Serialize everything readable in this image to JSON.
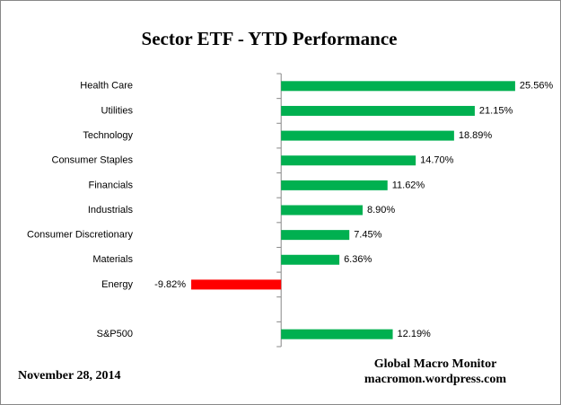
{
  "chart_data": {
    "type": "hbar",
    "title": "Sector ETF - YTD  Performance",
    "categories": [
      "Health Care",
      "Utilities",
      "Technology",
      "Consumer Staples",
      "Financials",
      "Industrials",
      "Consumer Discretionary",
      "Materials",
      "Energy",
      null,
      "S&P500"
    ],
    "values": [
      25.56,
      21.15,
      18.89,
      14.7,
      11.62,
      8.9,
      7.45,
      6.36,
      -9.82,
      null,
      12.19
    ],
    "value_labels": [
      "25.56%",
      "21.15%",
      "18.89%",
      "14.70%",
      "11.62%",
      "8.90%",
      "7.45%",
      "6.36%",
      "-9.82%",
      null,
      "12.19%"
    ],
    "color": "#00b050",
    "negative_color": "#ff0000",
    "xlim": [
      -11,
      29
    ],
    "date": "November 28, 2014",
    "source": [
      "Global Macro Monitor",
      "macromon.wordpress.com"
    ]
  }
}
